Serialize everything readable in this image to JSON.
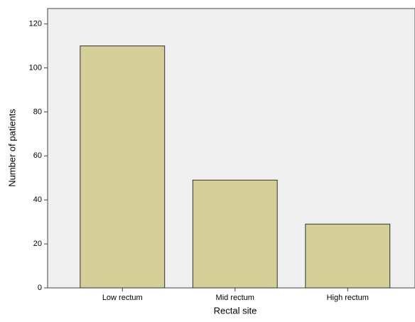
{
  "chart_data": {
    "type": "bar",
    "x_label": "Rectal site",
    "y_label": "Number of patients",
    "categories": [
      "Low rectum",
      "Mid rectum",
      "High rectum"
    ],
    "values": [
      110,
      49,
      29
    ],
    "color": "#d4cf97",
    "ylim": [
      0,
      127
    ],
    "yticks": [
      0,
      20,
      40,
      60,
      80,
      100,
      120
    ],
    "grid": false
  }
}
